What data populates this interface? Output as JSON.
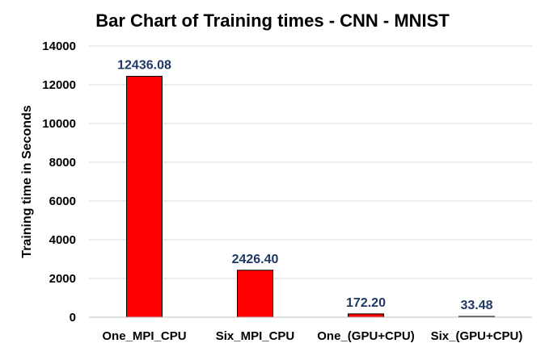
{
  "chart_data": {
    "type": "bar",
    "title": "Bar Chart of Training times - CNN - MNIST",
    "xlabel": "",
    "ylabel": "Training time in Seconds",
    "categories": [
      "One_MPI_CPU",
      "Six_MPI_CPU",
      "One_(GPU+CPU)",
      "Six_(GPU+CPU)"
    ],
    "values": [
      12436.08,
      2426.4,
      172.2,
      33.48
    ],
    "data_labels": [
      "12436.08",
      "2426.40",
      "172.20",
      "33.48"
    ],
    "ylim": [
      0,
      14000
    ],
    "yticks": [
      0,
      2000,
      4000,
      6000,
      8000,
      10000,
      12000,
      14000
    ],
    "grid": true,
    "legend": "none",
    "colors": {
      "bar": "#ff0000",
      "data_label": "#1f3864"
    }
  }
}
